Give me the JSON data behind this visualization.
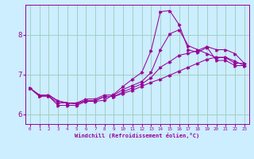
{
  "xlabel": "Windchill (Refroidissement éolien,°C)",
  "background_color": "#cceeff",
  "grid_color": "#99ccbb",
  "line_color": "#990099",
  "xlim": [
    -0.5,
    23.5
  ],
  "ylim": [
    5.75,
    8.75
  ],
  "yticks": [
    6,
    7,
    8
  ],
  "xticks": [
    0,
    1,
    2,
    3,
    4,
    5,
    6,
    7,
    8,
    9,
    10,
    11,
    12,
    13,
    14,
    15,
    16,
    17,
    18,
    19,
    20,
    21,
    22,
    23
  ],
  "series": [
    [
      0,
      6.65,
      1,
      6.45,
      2,
      6.45,
      3,
      6.22,
      4,
      6.22,
      5,
      6.22,
      6,
      6.32,
      7,
      6.32,
      8,
      6.35,
      9,
      6.5,
      10,
      6.7,
      11,
      6.88,
      12,
      7.05,
      13,
      7.6,
      14,
      8.58,
      15,
      8.6,
      16,
      8.25,
      17,
      7.62,
      18,
      7.55,
      19,
      7.68,
      20,
      7.35,
      21,
      7.35,
      22,
      7.22,
      23,
      7.22
    ],
    [
      0,
      6.65,
      1,
      6.45,
      2,
      6.45,
      3,
      6.28,
      4,
      6.28,
      5,
      6.28,
      6,
      6.38,
      7,
      6.38,
      8,
      6.48,
      9,
      6.48,
      10,
      6.62,
      11,
      6.72,
      12,
      6.82,
      13,
      7.05,
      14,
      7.62,
      15,
      8.02,
      16,
      8.12,
      17,
      7.72,
      18,
      7.62,
      19,
      7.52,
      20,
      7.42,
      21,
      7.42,
      22,
      7.28,
      23,
      7.28
    ],
    [
      0,
      6.65,
      1,
      6.48,
      2,
      6.48,
      3,
      6.33,
      4,
      6.28,
      5,
      6.26,
      6,
      6.34,
      7,
      6.34,
      8,
      6.44,
      9,
      6.44,
      10,
      6.56,
      11,
      6.66,
      12,
      6.76,
      13,
      6.92,
      14,
      7.18,
      15,
      7.32,
      16,
      7.48,
      17,
      7.53,
      18,
      7.6,
      19,
      7.7,
      20,
      7.62,
      21,
      7.62,
      22,
      7.52,
      23,
      7.28
    ],
    [
      0,
      6.65,
      1,
      6.48,
      2,
      6.48,
      3,
      6.33,
      4,
      6.28,
      5,
      6.26,
      6,
      6.34,
      7,
      6.34,
      8,
      6.44,
      9,
      6.44,
      10,
      6.52,
      11,
      6.6,
      12,
      6.7,
      13,
      6.8,
      14,
      6.88,
      15,
      6.98,
      16,
      7.08,
      17,
      7.18,
      18,
      7.28,
      19,
      7.38,
      20,
      7.43,
      21,
      7.43,
      22,
      7.33,
      23,
      7.22
    ]
  ]
}
